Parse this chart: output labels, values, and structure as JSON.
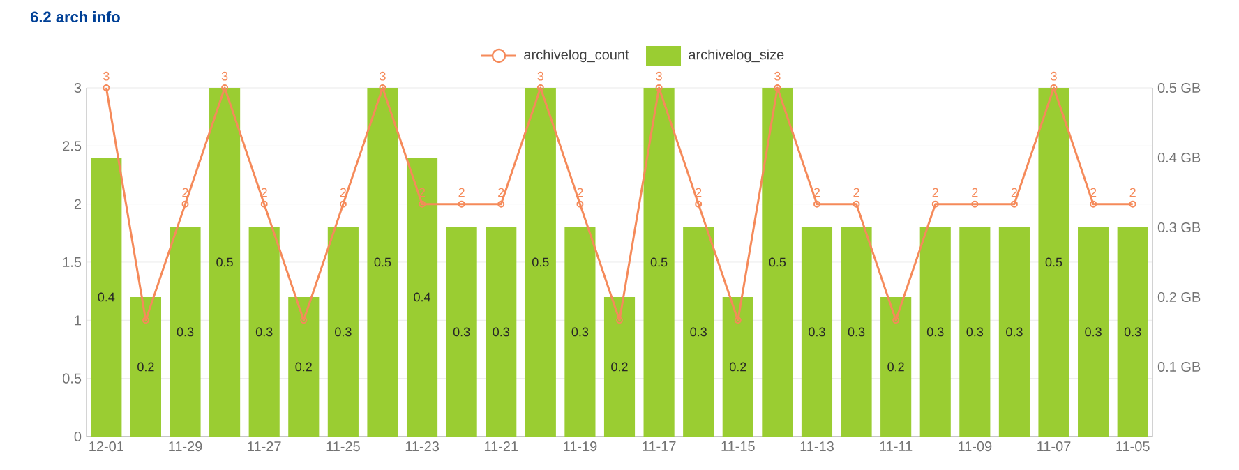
{
  "chart_data": {
    "type": "bar",
    "title": "6.2 arch info",
    "categories": [
      "12-01",
      null,
      "11-29",
      null,
      "11-27",
      null,
      "11-25",
      null,
      "11-23",
      null,
      "11-21",
      null,
      "11-19",
      null,
      "11-17",
      null,
      "11-15",
      null,
      "11-13",
      null,
      "11-11",
      null,
      "11-09",
      null,
      "11-07",
      null,
      "11-05"
    ],
    "series": [
      {
        "name": "archivelog_count",
        "type": "line",
        "color": "#f58a5a",
        "marker": "circle",
        "values": [
          3,
          1,
          2,
          3,
          2,
          1,
          2,
          3,
          2,
          2,
          2,
          3,
          2,
          1,
          3,
          2,
          1,
          3,
          2,
          2,
          1,
          2,
          2,
          2,
          3,
          2,
          2
        ],
        "value_labels": [
          "3",
          null,
          "2",
          "3",
          "2",
          null,
          "2",
          "3",
          "2",
          "2",
          "2",
          "3",
          "2",
          null,
          "3",
          "2",
          null,
          "3",
          "2",
          "2",
          null,
          "2",
          "2",
          "2",
          "3",
          "2",
          "2"
        ]
      },
      {
        "name": "archivelog_size",
        "axis": "y2",
        "color": "#9acd32",
        "data_labels": true,
        "values": [
          0.4,
          0.2,
          0.3,
          0.5,
          0.3,
          0.2,
          0.3,
          0.5,
          0.4,
          0.3,
          0.3,
          0.5,
          0.3,
          0.2,
          0.5,
          0.3,
          0.2,
          0.5,
          0.3,
          0.3,
          0.2,
          0.3,
          0.3,
          0.3,
          0.5,
          0.3,
          0.3
        ]
      }
    ],
    "ylim": [
      0,
      3
    ],
    "yticks": [
      0,
      0.5,
      1,
      1.5,
      2,
      2.5,
      3
    ],
    "y2lim": [
      0,
      0.5
    ],
    "y2ticks": [
      {
        "value": 0.1,
        "label": "0.1 GB"
      },
      {
        "value": 0.2,
        "label": "0.2 GB"
      },
      {
        "value": 0.3,
        "label": "0.3 GB"
      },
      {
        "value": 0.4,
        "label": "0.4 GB"
      },
      {
        "value": 0.5,
        "label": "0.5 GB"
      }
    ],
    "grid": "y",
    "legend": "top"
  }
}
